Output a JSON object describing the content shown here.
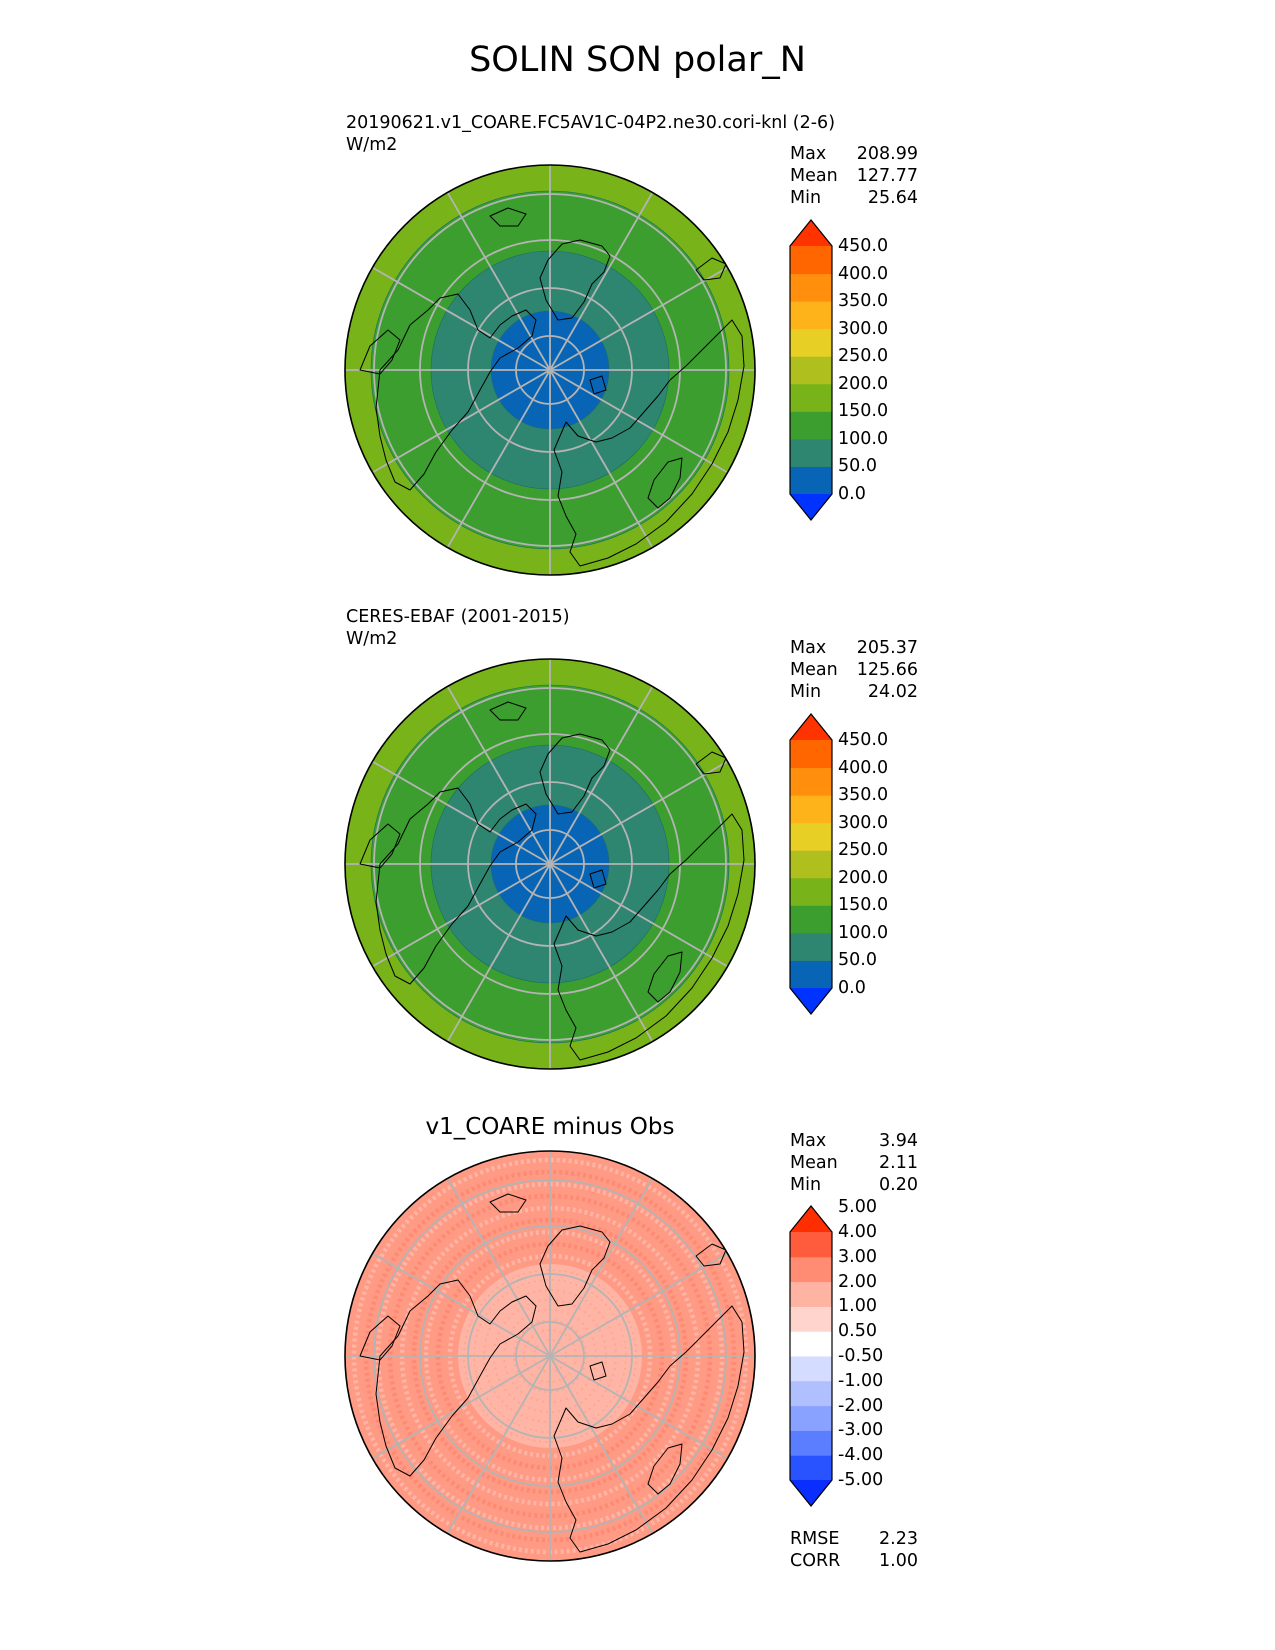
{
  "title": "SOLIN SON polar_N",
  "colors": {
    "solin_levels": [
      "#0033ff",
      "#0865b5",
      "#2e8570",
      "#3b9e2e",
      "#77b319",
      "#aebf1e",
      "#e8cf26",
      "#ffb31a",
      "#ff8f0d",
      "#ff6600",
      "#ff3300"
    ],
    "diff_levels": [
      "#0a2eff",
      "#2953ff",
      "#5b7dff",
      "#8aa2ff",
      "#b0c0ff",
      "#d4dcff",
      "#ffffff",
      "#ffd4cc",
      "#ffb3a3",
      "#ff8c73",
      "#ff5c3d",
      "#ff2e00"
    ]
  },
  "panels": [
    {
      "label_line1": "20190621.v1_COARE.FC5AV1C-04P2.ne30.cori-knl (2-6)",
      "label_line2": "W/m2",
      "stats": [
        {
          "label": "Max",
          "value": "208.99"
        },
        {
          "label": "Mean",
          "value": "127.77"
        },
        {
          "label": "Min",
          "value": "25.64"
        }
      ],
      "ticks": [
        "0.0",
        "50.0",
        "100.0",
        "150.0",
        "200.0",
        "250.0",
        "300.0",
        "350.0",
        "400.0",
        "450.0"
      ],
      "rings": [
        {
          "value": 208.99,
          "level": 5
        },
        {
          "value": 200,
          "level": 4
        },
        {
          "value": 150,
          "level": 3
        },
        {
          "value": 100,
          "level": 2
        },
        {
          "value": 50,
          "level": 1
        }
      ]
    },
    {
      "label_line1": "CERES-EBAF (2001-2015)",
      "label_line2": "W/m2",
      "stats": [
        {
          "label": "Max",
          "value": "205.37"
        },
        {
          "label": "Mean",
          "value": "125.66"
        },
        {
          "label": "Min",
          "value": "24.02"
        }
      ],
      "ticks": [
        "0.0",
        "50.0",
        "100.0",
        "150.0",
        "200.0",
        "250.0",
        "300.0",
        "350.0",
        "400.0",
        "450.0"
      ],
      "rings": [
        {
          "value": 205.37,
          "level": 5
        },
        {
          "value": 200,
          "level": 4
        },
        {
          "value": 150,
          "level": 3
        },
        {
          "value": 100,
          "level": 2
        },
        {
          "value": 50,
          "level": 1
        }
      ]
    },
    {
      "title": "v1_COARE minus Obs",
      "stats": [
        {
          "label": "Max",
          "value": "3.94"
        },
        {
          "label": "Mean",
          "value": "2.11"
        },
        {
          "label": "Min",
          "value": "0.20"
        }
      ],
      "ticks": [
        "-5.00",
        "-4.00",
        "-3.00",
        "-2.00",
        "-1.00",
        "-0.50",
        "0.50",
        "1.00",
        "2.00",
        "3.00",
        "4.00",
        "5.00"
      ],
      "metrics": [
        {
          "label": "RMSE",
          "value": "2.23"
        },
        {
          "label": "CORR",
          "value": "1.00"
        }
      ]
    }
  ]
}
